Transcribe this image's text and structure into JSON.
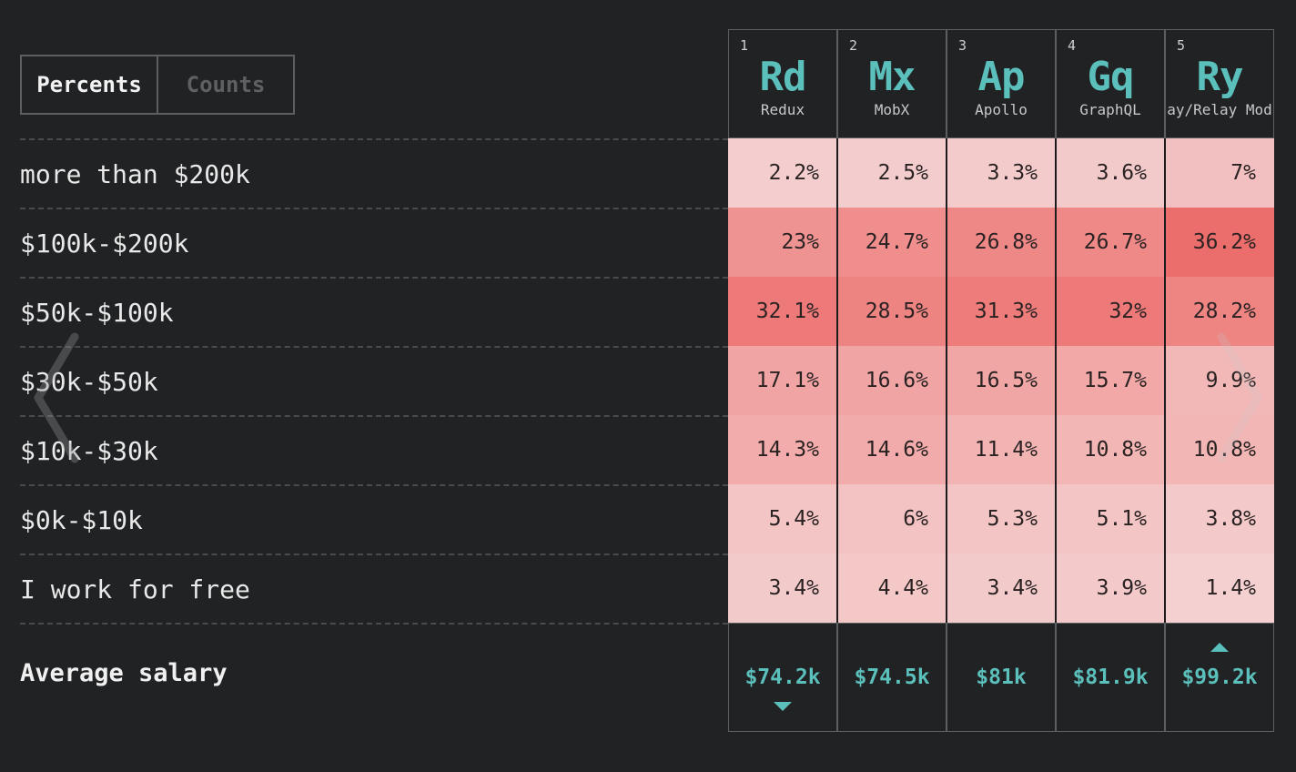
{
  "toggle": {
    "options": [
      "Percents",
      "Counts"
    ],
    "active": "Percents"
  },
  "rows": [
    {
      "label": "more than $200k",
      "values": [
        "2.2%",
        "2.5%",
        "3.3%",
        "3.6%",
        "7%"
      ]
    },
    {
      "label": "$100k-$200k",
      "values": [
        "23%",
        "24.7%",
        "26.8%",
        "26.7%",
        "36.2%"
      ]
    },
    {
      "label": "$50k-$100k",
      "values": [
        "32.1%",
        "28.5%",
        "31.3%",
        "32%",
        "28.2%"
      ]
    },
    {
      "label": "$30k-$50k",
      "values": [
        "17.1%",
        "16.6%",
        "16.5%",
        "15.7%",
        "9.9%"
      ]
    },
    {
      "label": "$10k-$30k",
      "values": [
        "14.3%",
        "14.6%",
        "11.4%",
        "10.8%",
        "10.8%"
      ]
    },
    {
      "label": "$0k-$10k",
      "values": [
        "5.4%",
        "6%",
        "5.3%",
        "5.1%",
        "3.8%"
      ]
    },
    {
      "label": "I work for free",
      "values": [
        "3.4%",
        "4.4%",
        "3.4%",
        "3.9%",
        "1.4%"
      ]
    }
  ],
  "columns": [
    {
      "rank": "1",
      "abbr": "Rd",
      "name": "Redux",
      "avg": "$74.2k",
      "marker": "down"
    },
    {
      "rank": "2",
      "abbr": "Mx",
      "name": "MobX",
      "avg": "$74.5k",
      "marker": ""
    },
    {
      "rank": "3",
      "abbr": "Ap",
      "name": "Apollo",
      "avg": "$81k",
      "marker": ""
    },
    {
      "rank": "4",
      "abbr": "Gq",
      "name": "GraphQL",
      "avg": "$81.9k",
      "marker": ""
    },
    {
      "rank": "5",
      "abbr": "Ry",
      "name": "ay/Relay Mod",
      "avg": "$99.2k",
      "marker": "up"
    }
  ],
  "average_label": "Average salary",
  "nav": {
    "prev_icon": "chevron-left-icon",
    "next_icon": "chevron-right-icon"
  },
  "colors": {
    "accent": "#5bbfbb",
    "background": "#212224",
    "heat_low": "#f4d4d4",
    "heat_high": "#ec6e6c"
  }
}
